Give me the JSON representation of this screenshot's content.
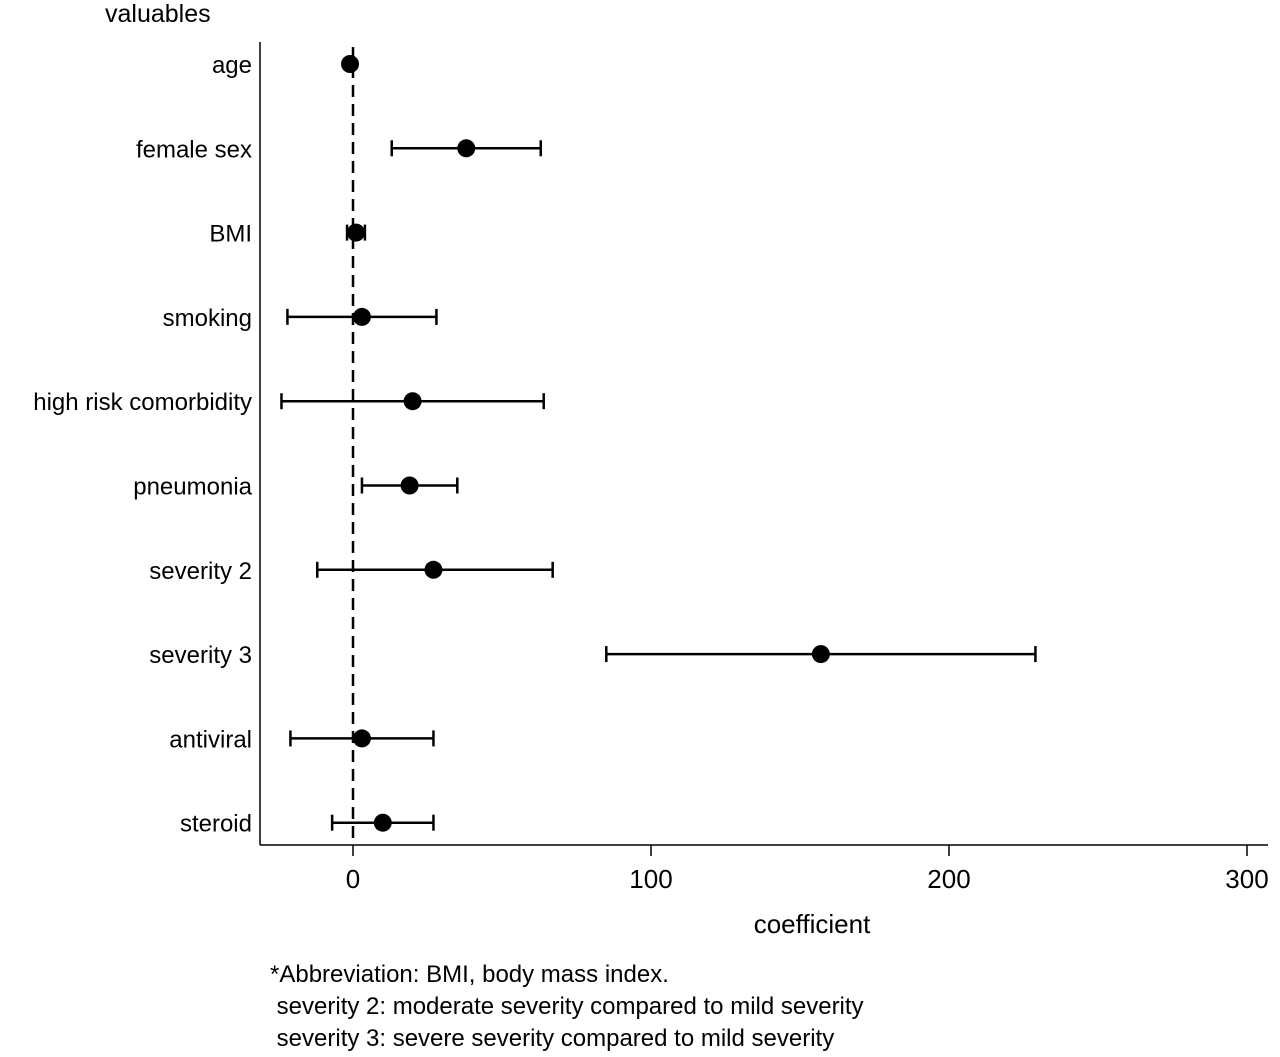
{
  "chart_data": {
    "type": "scatter",
    "subtype": "forest-plot",
    "title": "",
    "ylabel": "valuables",
    "xlabel": "coefficient",
    "xlim": [
      -31,
      306
    ],
    "xticks": [
      0,
      100,
      200,
      300
    ],
    "xtick_labels": [
      "0",
      "100",
      "200",
      "300"
    ],
    "reference_line": 0,
    "grid": false,
    "categories": [
      "age",
      "female sex",
      "BMI",
      "smoking",
      "high risk comorbidity",
      "pneumonia",
      "severity 2",
      "severity 3",
      "antiviral",
      "steroid"
    ],
    "estimates": [
      -1,
      38,
      1,
      3,
      20,
      19,
      27,
      157,
      3,
      10
    ],
    "ci_lower": [
      null,
      13,
      -2,
      -22,
      -24,
      3,
      -12,
      85,
      -21,
      -7
    ],
    "ci_upper": [
      null,
      63,
      4,
      28,
      64,
      35,
      67,
      229,
      27,
      27
    ],
    "colors": {
      "marker": "#000000",
      "axis": "#000000"
    }
  },
  "footnotes": [
    "*Abbreviation: BMI, body mass index.",
    " severity 2: moderate severity compared to mild severity",
    " severity 3: severe severity compared to mild severity"
  ]
}
